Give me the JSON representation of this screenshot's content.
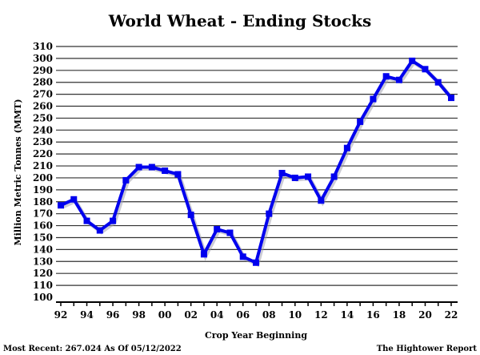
{
  "chart_data": {
    "type": "line",
    "title": "World Wheat - Ending Stocks",
    "xlabel": "Crop Year Beginning",
    "ylabel": "Million Metric Tonnes (MMT)",
    "ylim": [
      100,
      310
    ],
    "yticks": [
      100,
      110,
      120,
      130,
      140,
      150,
      160,
      170,
      180,
      190,
      200,
      210,
      220,
      230,
      240,
      250,
      260,
      270,
      280,
      290,
      300,
      310
    ],
    "x": [
      "92",
      "93",
      "94",
      "95",
      "96",
      "97",
      "98",
      "99",
      "00",
      "01",
      "02",
      "03",
      "04",
      "05",
      "06",
      "07",
      "08",
      "09",
      "10",
      "11",
      "12",
      "13",
      "14",
      "15",
      "16",
      "17",
      "18",
      "19",
      "20",
      "21",
      "22"
    ],
    "xtick_labels": [
      "92",
      "94",
      "96",
      "98",
      "00",
      "02",
      "04",
      "06",
      "08",
      "10",
      "12",
      "14",
      "16",
      "18",
      "20",
      "22"
    ],
    "series": [
      {
        "name": "Ending Stocks",
        "color": "#0000ee",
        "values": [
          177,
          182,
          164,
          156,
          164,
          198,
          209,
          209,
          206,
          203,
          169,
          136,
          157,
          154,
          134,
          129,
          170,
          204,
          200,
          201,
          181,
          201,
          225,
          247,
          266,
          285,
          282,
          298,
          291,
          280,
          267
        ]
      }
    ],
    "grid": true
  },
  "footer": {
    "left": "Most Recent: 267.024 As Of 05/12/2022",
    "right": "The Hightower Report"
  }
}
